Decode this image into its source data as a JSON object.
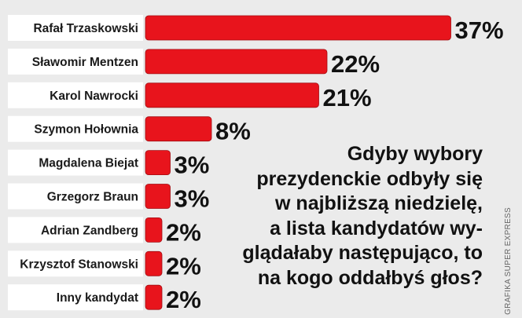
{
  "chart_data": {
    "type": "bar",
    "orientation": "horizontal",
    "categories": [
      "Rafał Trzaskowski",
      "Sławomir Mentzen",
      "Karol Nawrocki",
      "Szymon Hołownia",
      "Magdalena Biejat",
      "Grzegorz Braun",
      "Adrian Zandberg",
      "Krzysztof Stanowski",
      "Inny kandydat"
    ],
    "values": [
      37,
      22,
      21,
      8,
      3,
      3,
      2,
      2,
      2
    ],
    "value_labels": [
      "37%",
      "22%",
      "21%",
      "8%",
      "3%",
      "3%",
      "2%",
      "2%",
      "2%"
    ],
    "unit": "%",
    "bar_color": "#e8141c",
    "grid": false,
    "legend": "none"
  },
  "question": "Gdyby wybory\nprezydenckie odbyły się\nw najbliższą niedzielę,\na lista kandydatów wy-\nglądałaby następująco, to\nna kogo oddałbyś głos?",
  "credit": "GRAFIKA SUPER EXPRESS",
  "colors": {
    "background": "#ebebeb",
    "bar": "#e8141c",
    "label_box": "#ffffff",
    "text": "#111111"
  }
}
